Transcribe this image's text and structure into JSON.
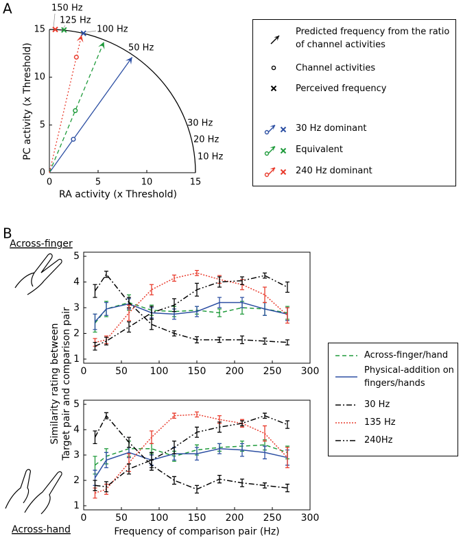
{
  "panel_labels": [
    "A",
    "B"
  ],
  "chart_data": [
    {
      "type": "vector",
      "x_label": "RA activity (x Threshold)",
      "y_label": "PC activity (x Threshold)",
      "xlim": [
        0,
        15
      ],
      "ylim": [
        0,
        15
      ],
      "xticks": [
        0,
        5,
        10,
        15
      ],
      "yticks": [
        0,
        5,
        10,
        15
      ],
      "arc_labels": [
        "150 Hz",
        "125 Hz",
        "100 Hz",
        "50 Hz",
        "30 Hz",
        "20 Hz",
        "10 Hz"
      ],
      "legend_items": [
        "Predicted frequency from the ratio of channel activities",
        "Channel activities",
        "Perceived frequency"
      ],
      "series": [
        {
          "name": "30 Hz dominant",
          "color": "#2b4ea2",
          "dash": "none",
          "predicted": [
            8.5,
            12.1
          ],
          "channel": [
            2.46,
            3.5
          ],
          "perceived": [
            3.5,
            14.6
          ]
        },
        {
          "name": "Equivalent",
          "color": "#1e9a3a",
          "dash": "6,4",
          "predicted": [
            5.6,
            13.7
          ],
          "channel": [
            2.66,
            6.5
          ],
          "perceived": [
            1.5,
            14.95
          ]
        },
        {
          "name": "240 Hz dominant",
          "color": "#e8392a",
          "dash": "2,3",
          "predicted": [
            3.3,
            14.4
          ],
          "channel": [
            2.77,
            12.1
          ],
          "perceived": [
            0.6,
            15.0
          ]
        }
      ]
    },
    {
      "type": "line",
      "annotation": "Across-finger",
      "y_label": [
        "Similarity rating between",
        "Target pair and comparison pair"
      ],
      "x": [
        15,
        30,
        60,
        90,
        120,
        150,
        180,
        210,
        240,
        270
      ],
      "xlim": [
        0,
        300
      ],
      "ylim": [
        1,
        5
      ],
      "xticks": [
        0,
        50,
        100,
        150,
        200,
        250,
        300
      ],
      "yticks": [
        1,
        2,
        3,
        4,
        5
      ],
      "series": [
        {
          "name": "Across-finger/hand",
          "color": "#1e9a3a",
          "dash": "6,4",
          "values": [
            2.4,
            2.95,
            3.2,
            2.9,
            2.85,
            2.9,
            2.8,
            3.0,
            2.95,
            2.8
          ],
          "errors": [
            0.35,
            0.3,
            0.3,
            0.2,
            0.2,
            0.15,
            0.15,
            0.25,
            0.25,
            0.25
          ]
        },
        {
          "name": "Physical-addition on fingers/hands",
          "color": "#2b4ea2",
          "dash": "none",
          "values": [
            2.45,
            2.95,
            3.15,
            2.8,
            2.75,
            2.85,
            3.2,
            3.2,
            2.95,
            2.75
          ],
          "errors": [
            0.3,
            0.25,
            0.2,
            0.2,
            0.2,
            0.2,
            0.2,
            0.2,
            0.25,
            0.25
          ]
        },
        {
          "name": "30 Hz",
          "color": "#000000",
          "dash": "8,3,2,3",
          "values": [
            3.65,
            4.3,
            3.2,
            2.35,
            2.0,
            1.75,
            1.75,
            1.75,
            1.7,
            1.65
          ],
          "errors": [
            0.25,
            0.12,
            0.2,
            0.2,
            0.1,
            0.12,
            0.1,
            0.15,
            0.12,
            0.1
          ]
        },
        {
          "name": "135 Hz",
          "color": "#e8392a",
          "dash": "2,2",
          "values": [
            1.65,
            1.75,
            2.8,
            3.7,
            4.15,
            4.35,
            4.1,
            3.9,
            3.5,
            2.7
          ],
          "errors": [
            0.15,
            0.15,
            0.3,
            0.2,
            0.12,
            0.1,
            0.15,
            0.2,
            0.3,
            0.3
          ]
        },
        {
          "name": "240Hz",
          "color": "#000000",
          "dash": "8,3,2,3,2,3",
          "values": [
            1.5,
            1.7,
            2.25,
            2.8,
            3.1,
            3.7,
            4.0,
            4.05,
            4.25,
            3.8
          ],
          "errors": [
            0.15,
            0.15,
            0.2,
            0.25,
            0.25,
            0.25,
            0.2,
            0.15,
            0.1,
            0.2
          ]
        }
      ]
    },
    {
      "type": "line",
      "annotation": "Across-hand",
      "x_label": "Frequency of comparison pair (Hz)",
      "x": [
        15,
        30,
        60,
        90,
        120,
        150,
        180,
        210,
        240,
        270
      ],
      "xlim": [
        0,
        300
      ],
      "ylim": [
        1,
        5
      ],
      "xticks": [
        0,
        50,
        100,
        150,
        200,
        250,
        300
      ],
      "yticks": [
        1,
        2,
        3,
        4,
        5
      ],
      "series": [
        {
          "color": "#1e9a3a",
          "dash": "6,4",
          "values": [
            2.6,
            2.95,
            3.25,
            3.25,
            2.95,
            3.2,
            3.3,
            3.35,
            3.4,
            3.1
          ],
          "errors": [
            0.35,
            0.3,
            0.3,
            0.2,
            0.2,
            0.2,
            0.15,
            0.2,
            0.2,
            0.25
          ]
        },
        {
          "color": "#2b4ea2",
          "dash": "none",
          "values": [
            2.1,
            2.8,
            3.1,
            2.8,
            3.05,
            3.05,
            3.25,
            3.2,
            3.1,
            2.9
          ],
          "errors": [
            0.3,
            0.3,
            0.2,
            0.2,
            0.25,
            0.25,
            0.2,
            0.25,
            0.25,
            0.3
          ]
        },
        {
          "color": "#000000",
          "dash": "8,3,2,3",
          "values": [
            3.7,
            4.55,
            3.5,
            2.6,
            2.0,
            1.65,
            2.05,
            1.9,
            1.8,
            1.7
          ],
          "errors": [
            0.25,
            0.12,
            0.2,
            0.2,
            0.15,
            0.15,
            0.15,
            0.15,
            0.1,
            0.15
          ]
        },
        {
          "color": "#e8392a",
          "dash": "2,2",
          "values": [
            1.5,
            1.65,
            2.7,
            3.7,
            4.55,
            4.6,
            4.4,
            4.25,
            3.85,
            2.9
          ],
          "errors": [
            0.2,
            0.2,
            0.35,
            0.25,
            0.1,
            0.1,
            0.15,
            0.15,
            0.3,
            0.4
          ]
        },
        {
          "color": "#000000",
          "dash": "8,3,2,3,2,3",
          "values": [
            1.8,
            1.75,
            2.45,
            2.8,
            3.3,
            3.9,
            4.1,
            4.25,
            4.55,
            4.2
          ],
          "errors": [
            0.2,
            0.2,
            0.2,
            0.3,
            0.25,
            0.2,
            0.2,
            0.1,
            0.1,
            0.15
          ]
        }
      ]
    }
  ]
}
